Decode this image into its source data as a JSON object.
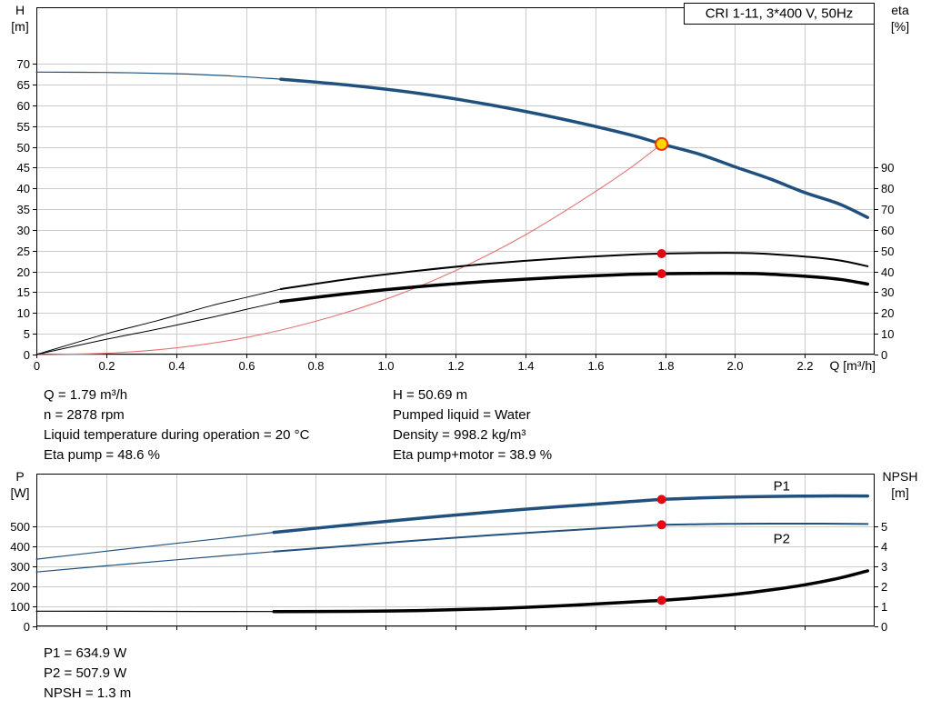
{
  "colors": {
    "curve_blue": "#20517e",
    "label_blue": "#2050a0",
    "black": "#000000",
    "system_red": "#e57373",
    "dot_red": "#e30613",
    "duty_fill": "#ffd500",
    "duty_ring": "#ee3000",
    "grid": "#cccccc",
    "border": "#000000"
  },
  "info_top_left": [
    "Q = 1.79 m³/h",
    "n = 2878 rpm",
    "Liquid temperature during operation = 20 °C",
    "Eta pump = 48.6 %"
  ],
  "info_top_right": [
    "H = 50.69 m",
    "Pumped liquid = Water",
    "Density = 998.2 kg/m³",
    "Eta pump+motor = 38.9 %"
  ],
  "info_bottom": [
    "P1 = 634.9 W",
    "P2 = 507.9 W",
    "NPSH = 1.3 m"
  ],
  "chart_data": [
    {
      "type": "line",
      "title": "CRI 1-11, 3*400 V, 50Hz",
      "x_axis": {
        "label": "Q [m³/h]",
        "min": 0,
        "max": 2.4,
        "tick_values": [
          0,
          0.2,
          0.4,
          0.6,
          0.8,
          1.0,
          1.2,
          1.4,
          1.6,
          1.8,
          2.0,
          2.2
        ],
        "tick_labels": [
          "0",
          "0.2",
          "0.4",
          "0.6",
          "0.8",
          "1.0",
          "1.2",
          "1.4",
          "1.6",
          "1.8",
          "2.0",
          "2.2"
        ]
      },
      "y_left": {
        "label_lines": [
          "H",
          "[m]"
        ],
        "min": 0,
        "max": 83.6,
        "tick_values": [
          0,
          5,
          10,
          15,
          20,
          25,
          30,
          35,
          40,
          45,
          50,
          55,
          60,
          65,
          70
        ],
        "tick_labels": [
          "0",
          "5",
          "10",
          "15",
          "20",
          "25",
          "30",
          "35",
          "40",
          "45",
          "50",
          "55",
          "60",
          "65",
          "70"
        ]
      },
      "y_right": {
        "label_lines": [
          "eta",
          "[%]"
        ],
        "scale_to_left": 0.5,
        "tick_values": [
          0,
          10,
          20,
          30,
          40,
          50,
          60,
          70,
          80,
          90
        ],
        "tick_labels": [
          "0",
          "10",
          "20",
          "30",
          "40",
          "50",
          "60",
          "70",
          "80",
          "90"
        ]
      },
      "series": [
        {
          "name": "hq-curve-low",
          "color": "#20517e",
          "width": 1.2,
          "axis": "left",
          "points": [
            [
              0,
              68
            ],
            [
              0.2,
              67.9
            ],
            [
              0.4,
              67.6
            ],
            [
              0.55,
              67.1
            ],
            [
              0.7,
              66.3
            ]
          ]
        },
        {
          "name": "hq-curve",
          "color": "#20517e",
          "width": 3.5,
          "axis": "left",
          "points": [
            [
              0.7,
              66.3
            ],
            [
              0.9,
              64.8
            ],
            [
              1.1,
              62.8
            ],
            [
              1.3,
              60.1
            ],
            [
              1.5,
              56.8
            ],
            [
              1.7,
              52.9
            ],
            [
              1.79,
              50.69
            ],
            [
              1.9,
              48.2
            ],
            [
              2.0,
              45.2
            ],
            [
              2.1,
              42.3
            ],
            [
              2.2,
              39.0
            ],
            [
              2.3,
              36.2
            ],
            [
              2.38,
              33.0
            ]
          ]
        },
        {
          "name": "system-curve",
          "color": "#e57373",
          "width": 1.1,
          "axis": "left",
          "points": [
            [
              0,
              0
            ],
            [
              0.2,
              0.3
            ],
            [
              0.4,
              1.6
            ],
            [
              0.6,
              4.1
            ],
            [
              0.8,
              8.0
            ],
            [
              1.0,
              13.3
            ],
            [
              1.2,
              20.2
            ],
            [
              1.4,
              28.8
            ],
            [
              1.6,
              39.2
            ],
            [
              1.7,
              44.9
            ],
            [
              1.79,
              50.69
            ]
          ]
        },
        {
          "name": "eta-pump-curve-low",
          "color": "#000000",
          "width": 1,
          "axis": "right",
          "points": [
            [
              0,
              0
            ],
            [
              0.2,
              10
            ],
            [
              0.35,
              16.5
            ],
            [
              0.5,
              23.5
            ],
            [
              0.6,
              27.5
            ],
            [
              0.7,
              31.5
            ]
          ]
        },
        {
          "name": "eta-pump-curve",
          "color": "#000000",
          "width": 2,
          "axis": "right",
          "points": [
            [
              0.7,
              31.5
            ],
            [
              0.9,
              36.5
            ],
            [
              1.1,
              40.5
            ],
            [
              1.3,
              43.8
            ],
            [
              1.5,
              46.3
            ],
            [
              1.7,
              48.1
            ],
            [
              1.79,
              48.6
            ],
            [
              1.9,
              48.9
            ],
            [
              2.05,
              48.8
            ],
            [
              2.2,
              47.2
            ],
            [
              2.3,
              45.3
            ],
            [
              2.38,
              42.5
            ]
          ]
        },
        {
          "name": "eta-pump-motor-curve-low",
          "color": "#000000",
          "width": 1,
          "axis": "right",
          "points": [
            [
              0,
              0
            ],
            [
              0.2,
              7.3
            ],
            [
              0.35,
              12.4
            ],
            [
              0.5,
              17.8
            ],
            [
              0.6,
              21.7
            ],
            [
              0.7,
              25.5
            ]
          ]
        },
        {
          "name": "eta-pump-motor-curve",
          "color": "#000000",
          "width": 3.5,
          "axis": "right",
          "points": [
            [
              0.7,
              25.5
            ],
            [
              0.9,
              29.5
            ],
            [
              1.1,
              32.8
            ],
            [
              1.3,
              35.3
            ],
            [
              1.5,
              37.2
            ],
            [
              1.7,
              38.6
            ],
            [
              1.79,
              38.9
            ],
            [
              1.9,
              39.1
            ],
            [
              2.05,
              39.0
            ],
            [
              2.2,
              37.7
            ],
            [
              2.3,
              36.2
            ],
            [
              2.38,
              33.9
            ]
          ]
        }
      ],
      "markers": [
        {
          "style": "duty",
          "x": 1.79,
          "value": 50.69,
          "axis": "left"
        },
        {
          "style": "dot",
          "x": 1.79,
          "value": 48.6,
          "axis": "right"
        },
        {
          "style": "dot",
          "x": 1.79,
          "value": 38.9,
          "axis": "right"
        }
      ],
      "plot_labels": []
    },
    {
      "type": "line",
      "title": null,
      "x_axis": {
        "label": null,
        "min": 0,
        "max": 2.4,
        "tick_values": [
          0,
          0.2,
          0.4,
          0.6,
          0.8,
          1.0,
          1.2,
          1.4,
          1.6,
          1.8,
          2.0,
          2.2
        ],
        "tick_labels": []
      },
      "y_left": {
        "label_lines": [
          "P",
          "[W]"
        ],
        "min": 0,
        "max": 764,
        "tick_values": [
          0,
          100,
          200,
          300,
          400,
          500
        ],
        "tick_labels": [
          "0",
          "100",
          "200",
          "300",
          "400",
          "500"
        ]
      },
      "y_right": {
        "label_lines": [
          "NPSH",
          "[m]"
        ],
        "scale_to_left": 100,
        "tick_values": [
          0,
          1,
          2,
          3,
          4,
          5
        ],
        "tick_labels": [
          "0",
          "1",
          "2",
          "3",
          "4",
          "5"
        ]
      },
      "series": [
        {
          "name": "p1-curve-low",
          "color": "#20517e",
          "width": 1.2,
          "axis": "left",
          "points": [
            [
              0,
              336
            ],
            [
              0.2,
              376
            ],
            [
              0.4,
              415
            ],
            [
              0.55,
              444
            ],
            [
              0.68,
              470
            ]
          ]
        },
        {
          "name": "p1-curve",
          "color": "#20517e",
          "width": 3.5,
          "axis": "left",
          "points": [
            [
              0.68,
              470
            ],
            [
              0.9,
              508
            ],
            [
              1.1,
              541
            ],
            [
              1.3,
              572
            ],
            [
              1.5,
              599
            ],
            [
              1.7,
              624
            ],
            [
              1.79,
              634.9
            ],
            [
              1.9,
              642
            ],
            [
              2.0,
              647
            ],
            [
              2.1,
              650
            ],
            [
              2.25,
              652
            ],
            [
              2.38,
              652
            ]
          ]
        },
        {
          "name": "p2-curve-low",
          "color": "#20517e",
          "width": 1.2,
          "axis": "left",
          "points": [
            [
              0,
              272
            ],
            [
              0.2,
              303
            ],
            [
              0.4,
              333
            ],
            [
              0.55,
              355
            ],
            [
              0.68,
              374
            ]
          ]
        },
        {
          "name": "p2-curve",
          "color": "#20517e",
          "width": 2,
          "axis": "left",
          "points": [
            [
              0.68,
              374
            ],
            [
              0.9,
              404
            ],
            [
              1.1,
              431
            ],
            [
              1.3,
              456
            ],
            [
              1.5,
              478
            ],
            [
              1.7,
              499
            ],
            [
              1.79,
              507.9
            ],
            [
              1.9,
              511
            ],
            [
              2.0,
              513
            ],
            [
              2.1,
              514
            ],
            [
              2.25,
              514
            ],
            [
              2.38,
              512
            ]
          ]
        },
        {
          "name": "npsh-curve-low",
          "color": "#000000",
          "width": 1.2,
          "axis": "right",
          "points": [
            [
              0,
              0.76
            ],
            [
              0.35,
              0.75
            ],
            [
              0.68,
              0.74
            ]
          ]
        },
        {
          "name": "npsh-curve",
          "color": "#000000",
          "width": 3.5,
          "axis": "right",
          "points": [
            [
              0.68,
              0.74
            ],
            [
              0.9,
              0.75
            ],
            [
              1.1,
              0.79
            ],
            [
              1.3,
              0.88
            ],
            [
              1.5,
              1.03
            ],
            [
              1.7,
              1.22
            ],
            [
              1.79,
              1.3
            ],
            [
              1.9,
              1.44
            ],
            [
              2.0,
              1.6
            ],
            [
              2.1,
              1.82
            ],
            [
              2.2,
              2.08
            ],
            [
              2.3,
              2.42
            ],
            [
              2.38,
              2.78
            ]
          ]
        }
      ],
      "markers": [
        {
          "style": "dot",
          "x": 1.79,
          "value": 634.9,
          "axis": "left"
        },
        {
          "style": "dot",
          "x": 1.79,
          "value": 507.9,
          "axis": "left"
        },
        {
          "style": "dot",
          "x": 1.79,
          "value": 1.3,
          "axis": "right"
        }
      ],
      "plot_labels": [
        {
          "text": "P1",
          "x": 2.11,
          "value": 680,
          "axis": "left",
          "color": "#2050a0"
        },
        {
          "text": "P2",
          "x": 2.11,
          "value": 415,
          "axis": "left",
          "color": "#2050a0"
        }
      ]
    }
  ]
}
